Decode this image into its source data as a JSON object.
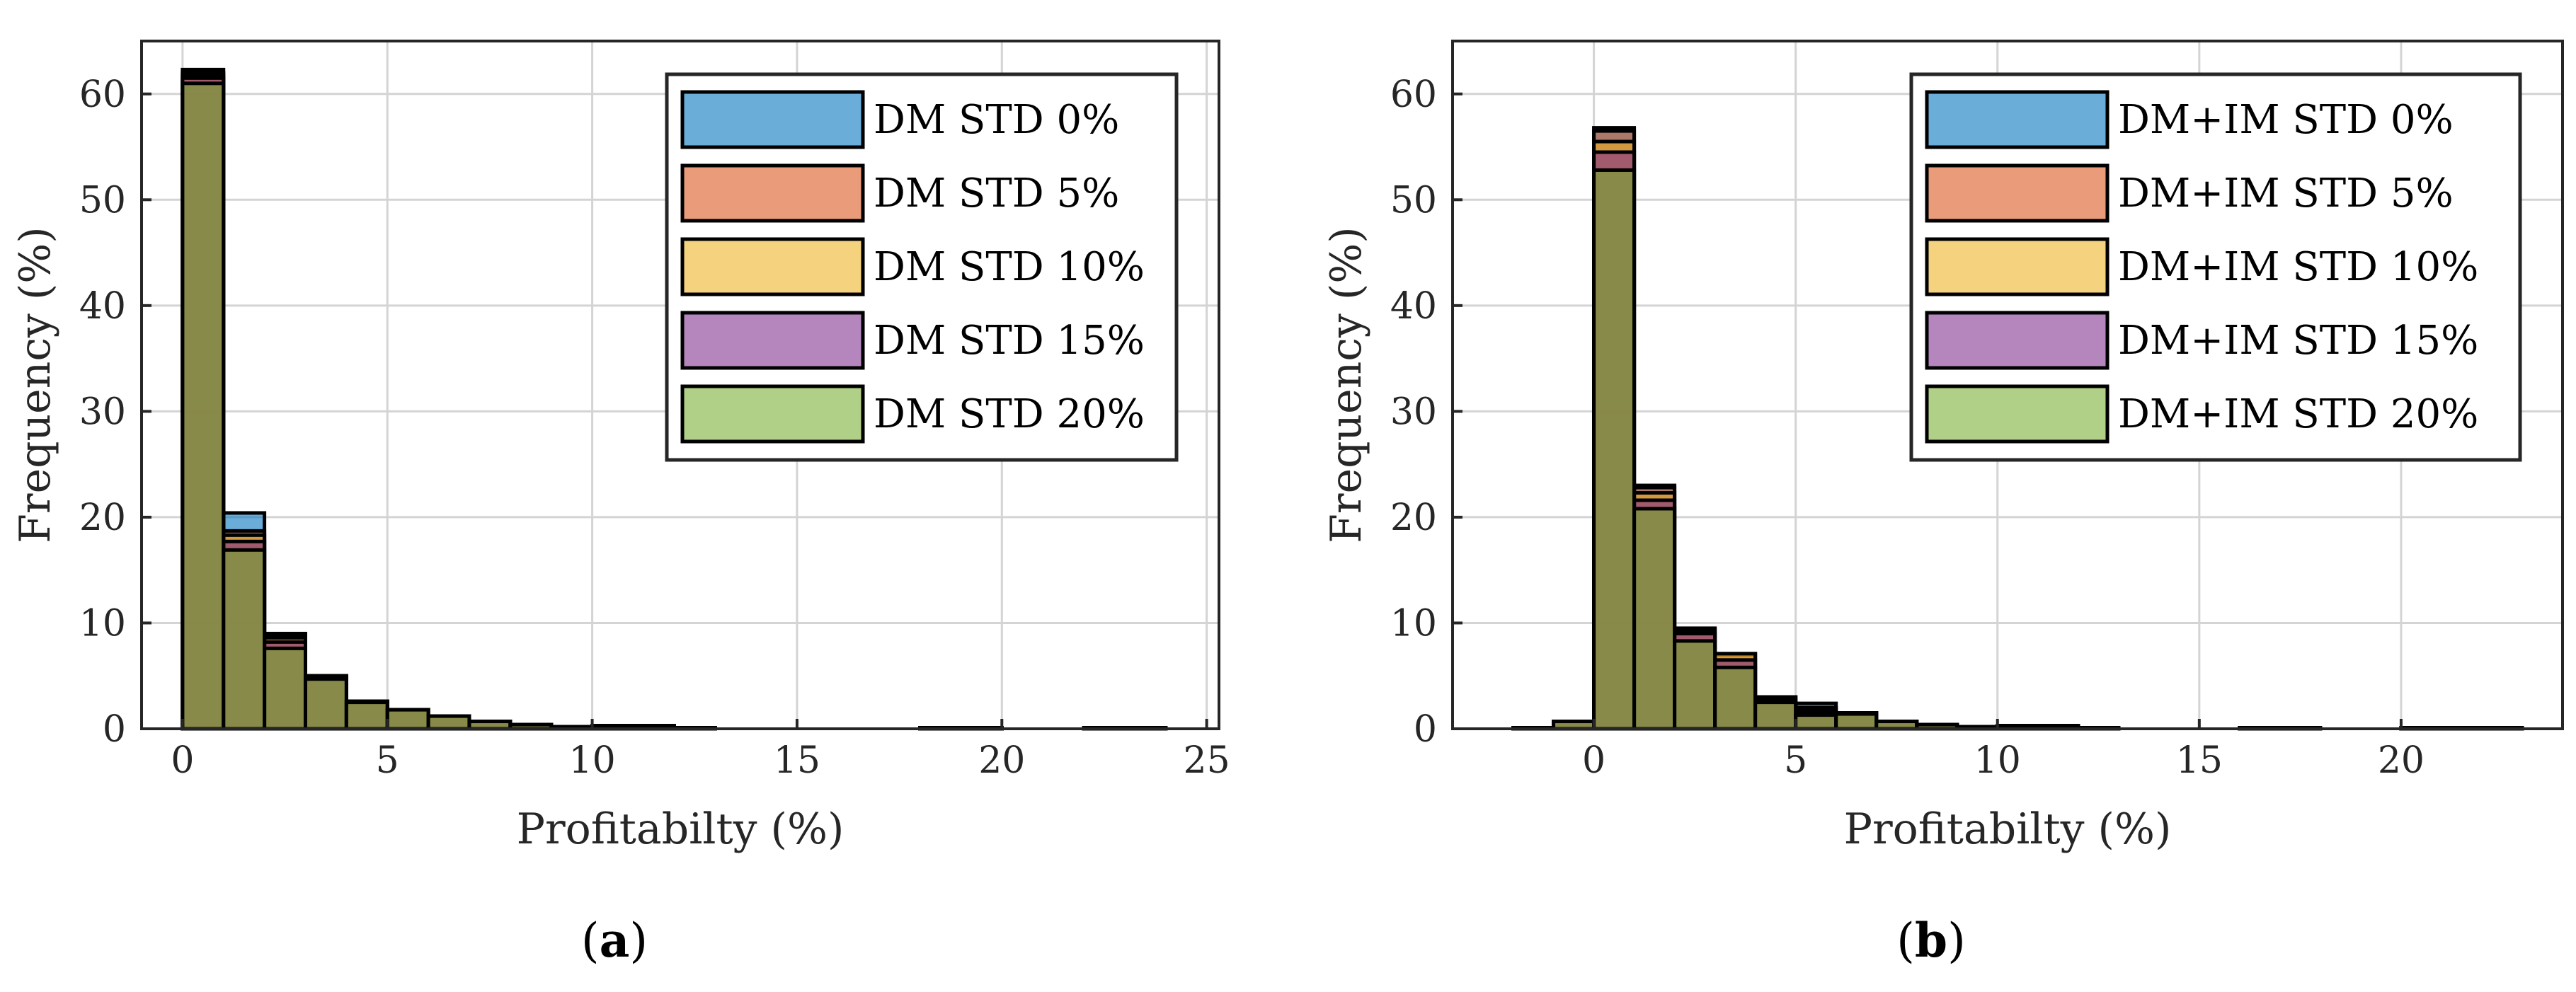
{
  "chart_data": [
    {
      "type": "bar",
      "panel_label": "a",
      "xlabel": "Profitabilty (%)",
      "ylabel": "Frequency (%)",
      "xlim": [
        -1,
        25.3
      ],
      "ylim": [
        0,
        65
      ],
      "xticks": [
        0,
        5,
        10,
        15,
        20,
        25
      ],
      "yticks": [
        0,
        10,
        20,
        30,
        40,
        50,
        60
      ],
      "grid": true,
      "legend_position": "top-right",
      "bin_width": 1,
      "bins": [
        0,
        1,
        2,
        3,
        4,
        5,
        6,
        7,
        8,
        9,
        10,
        11,
        12,
        13,
        14,
        15,
        16,
        17,
        18,
        19,
        20,
        21,
        22,
        23
      ],
      "series": [
        {
          "name": "DM STD 0%",
          "color": "#0072BD",
          "values": [
            62.3,
            20.4,
            9.0,
            5.0,
            2.6,
            1.8,
            1.2,
            0.7,
            0.4,
            0.2,
            0.3,
            0.3,
            0.1,
            0,
            0,
            0,
            0,
            0,
            0.1,
            0.1,
            0,
            0,
            0.1,
            0.1
          ]
        },
        {
          "name": "DM STD 5%",
          "color": "#D95319",
          "values": [
            62.0,
            18.7,
            8.8,
            5.0,
            2.6,
            1.8,
            1.2,
            0.7,
            0.4,
            0.2,
            0.3,
            0.3,
            0.1,
            0,
            0,
            0,
            0,
            0,
            0.1,
            0.1,
            0,
            0,
            0.1,
            0.1
          ]
        },
        {
          "name": "DM STD 10%",
          "color": "#EDB120",
          "values": [
            61.8,
            18.3,
            8.6,
            5.0,
            2.6,
            1.8,
            1.2,
            0.7,
            0.4,
            0.2,
            0.3,
            0.3,
            0.1,
            0,
            0,
            0,
            0,
            0,
            0.1,
            0.1,
            0,
            0,
            0.1,
            0.1
          ]
        },
        {
          "name": "DM STD 15%",
          "color": "#7E2F8E",
          "values": [
            61.5,
            17.7,
            8.2,
            4.9,
            2.6,
            1.8,
            1.2,
            0.7,
            0.4,
            0.2,
            0.3,
            0.3,
            0.1,
            0,
            0,
            0,
            0,
            0,
            0.1,
            0.1,
            0,
            0,
            0.1,
            0.1
          ]
        },
        {
          "name": "DM STD 20%",
          "color": "#77AC30",
          "values": [
            61.0,
            16.9,
            7.6,
            4.7,
            2.5,
            1.8,
            1.2,
            0.7,
            0.4,
            0.2,
            0.3,
            0.3,
            0.1,
            0,
            0,
            0,
            0,
            0,
            0.1,
            0.1,
            0,
            0,
            0.1,
            0.1
          ]
        }
      ]
    },
    {
      "type": "bar",
      "panel_label": "b",
      "xlabel": "Profitabilty (%)",
      "ylabel": "Frequency (%)",
      "xlim": [
        -3.5,
        24
      ],
      "ylim": [
        0,
        65
      ],
      "xticks": [
        0,
        5,
        10,
        15,
        20
      ],
      "yticks": [
        0,
        10,
        20,
        30,
        40,
        50,
        60
      ],
      "grid": true,
      "legend_position": "top-right",
      "bin_width": 1,
      "bins": [
        -2,
        -1,
        0,
        1,
        2,
        3,
        4,
        5,
        6,
        7,
        8,
        9,
        10,
        11,
        12,
        13,
        14,
        15,
        16,
        17,
        18,
        19,
        20,
        21,
        22
      ],
      "series": [
        {
          "name": "DM+IM STD 0%",
          "color": "#0072BD",
          "values": [
            0.1,
            0.7,
            56.8,
            23.0,
            9.5,
            7.0,
            3.0,
            2.4,
            1.5,
            0.7,
            0.4,
            0.2,
            0.3,
            0.3,
            0.1,
            0,
            0,
            0,
            0.1,
            0.1,
            0,
            0,
            0.1,
            0.1,
            0.1
          ]
        },
        {
          "name": "DM+IM STD 5%",
          "color": "#D95319",
          "values": [
            0.1,
            0.7,
            56.5,
            22.8,
            9.5,
            7.1,
            3.0,
            2.0,
            1.5,
            0.7,
            0.4,
            0.2,
            0.3,
            0.3,
            0.1,
            0,
            0,
            0,
            0.1,
            0.1,
            0,
            0,
            0.1,
            0.1,
            0.1
          ]
        },
        {
          "name": "DM+IM STD 10%",
          "color": "#EDB120",
          "values": [
            0.1,
            0.7,
            55.5,
            22.3,
            9.3,
            7.1,
            3.0,
            1.9,
            1.5,
            0.7,
            0.4,
            0.2,
            0.3,
            0.3,
            0.1,
            0,
            0,
            0,
            0.1,
            0.1,
            0,
            0,
            0.1,
            0.1,
            0.1
          ]
        },
        {
          "name": "DM+IM STD 15%",
          "color": "#7E2F8E",
          "values": [
            0.1,
            0.7,
            54.5,
            21.6,
            9.0,
            6.5,
            2.8,
            1.6,
            1.5,
            0.7,
            0.4,
            0.2,
            0.3,
            0.3,
            0.1,
            0,
            0,
            0,
            0.1,
            0.1,
            0,
            0,
            0.1,
            0.1,
            0.1
          ]
        },
        {
          "name": "DM+IM STD 20%",
          "color": "#77AC30",
          "values": [
            0.1,
            0.7,
            52.8,
            20.8,
            8.3,
            5.8,
            2.5,
            1.3,
            1.4,
            0.7,
            0.4,
            0.2,
            0.3,
            0.3,
            0.1,
            0,
            0,
            0,
            0.1,
            0.1,
            0,
            0,
            0.1,
            0.1,
            0.1
          ]
        }
      ]
    }
  ]
}
